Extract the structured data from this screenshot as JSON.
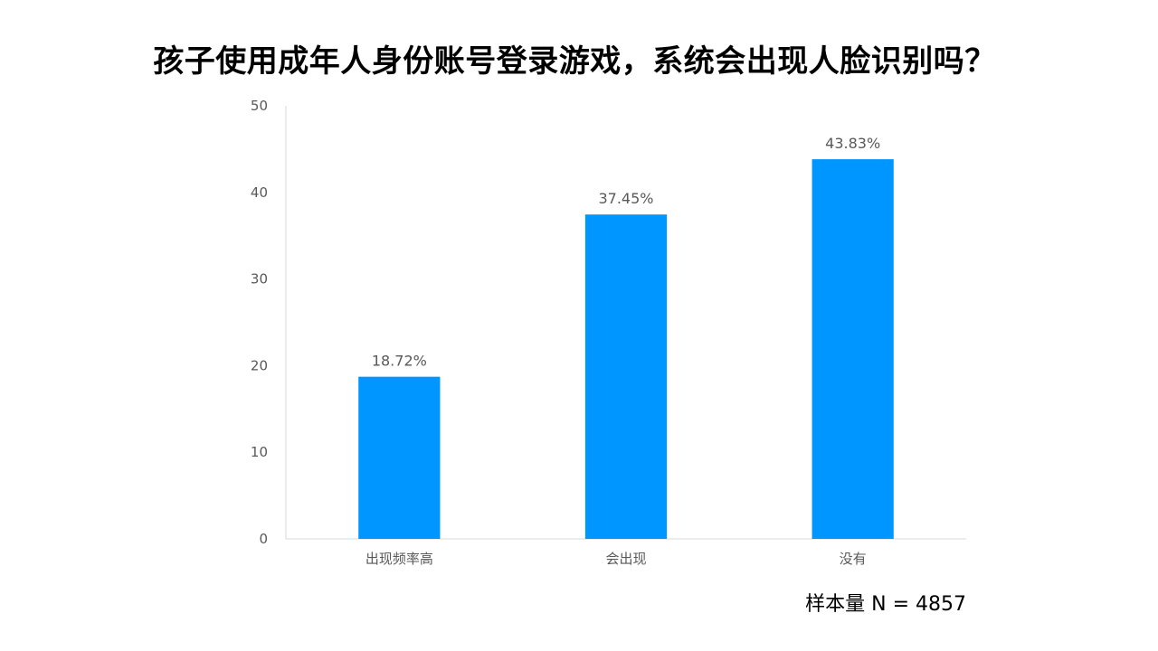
{
  "chart_data": {
    "type": "bar",
    "title": "孩子使用成年人身份账号登录游戏，系统会出现人脸识别吗？",
    "categories": [
      "出现频率高",
      "会出现",
      "没有"
    ],
    "values": [
      18.72,
      37.45,
      43.83
    ],
    "data_labels": [
      "18.72%",
      "37.45%",
      "43.83%"
    ],
    "ylim": [
      0,
      50
    ],
    "yticks": [
      0,
      10,
      20,
      30,
      40,
      50
    ],
    "xlabel": "",
    "ylabel": "",
    "grid": false,
    "legend": "none",
    "bar_color": "#0096FF",
    "axis_color": "#D9D9D9"
  },
  "footer": {
    "sample_size": "样本量 N = 4857"
  }
}
